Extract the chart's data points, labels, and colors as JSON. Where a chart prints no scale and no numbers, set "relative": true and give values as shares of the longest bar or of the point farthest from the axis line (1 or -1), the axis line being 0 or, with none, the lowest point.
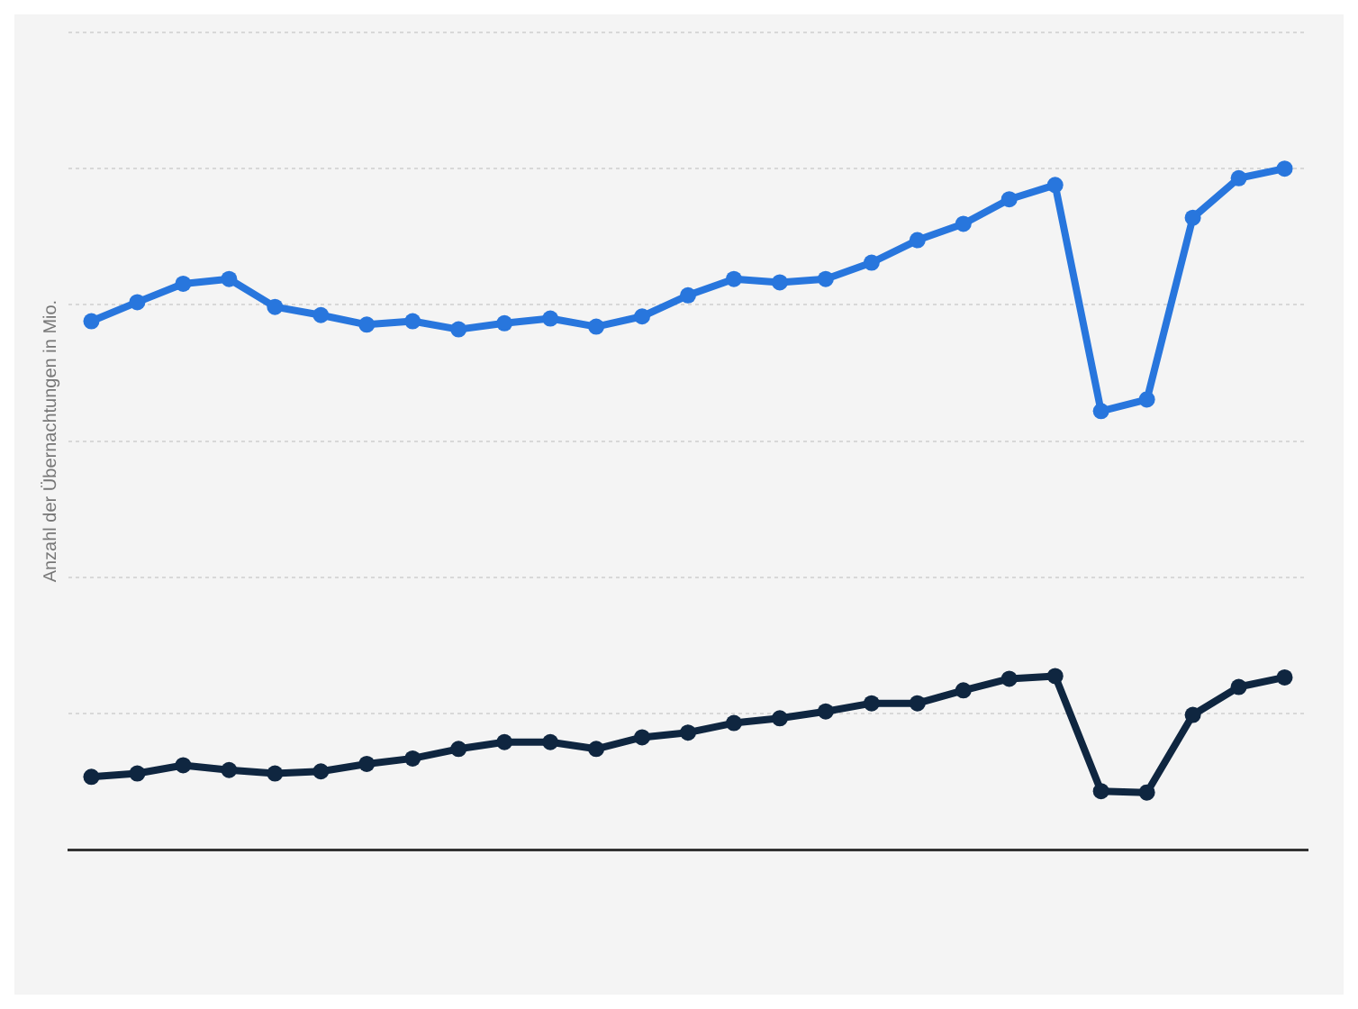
{
  "chart_data": {
    "type": "line",
    "relative": true,
    "ylabel": "Anzahl der Übernachtungen in Mio.",
    "categories": [
      null,
      null,
      null,
      null,
      null,
      null,
      null,
      null,
      null,
      null,
      null,
      null,
      null,
      null,
      null,
      null,
      null,
      null,
      null,
      null,
      null,
      null,
      null,
      null,
      null,
      null,
      null
    ],
    "grid": "y",
    "marker": "circle",
    "legend": false,
    "series": [
      {
        "color": "#2876dd",
        "values": [
          0.776,
          0.804,
          0.831,
          0.838,
          0.797,
          0.785,
          0.771,
          0.776,
          0.764,
          0.773,
          0.78,
          0.768,
          0.783,
          0.814,
          0.838,
          0.833,
          0.838,
          0.862,
          0.895,
          0.919,
          0.955,
          0.976,
          0.644,
          0.661,
          0.928,
          0.986,
          1
        ]
      },
      {
        "color": "#0f2640",
        "values": [
          0.107,
          0.112,
          0.124,
          0.117,
          0.112,
          0.115,
          0.126,
          0.134,
          0.148,
          0.158,
          0.158,
          0.148,
          0.165,
          0.172,
          0.186,
          0.193,
          0.203,
          0.215,
          0.215,
          0.234,
          0.251,
          0.255,
          0.086,
          0.084,
          0.198,
          0.239,
          0.253
        ]
      }
    ]
  }
}
